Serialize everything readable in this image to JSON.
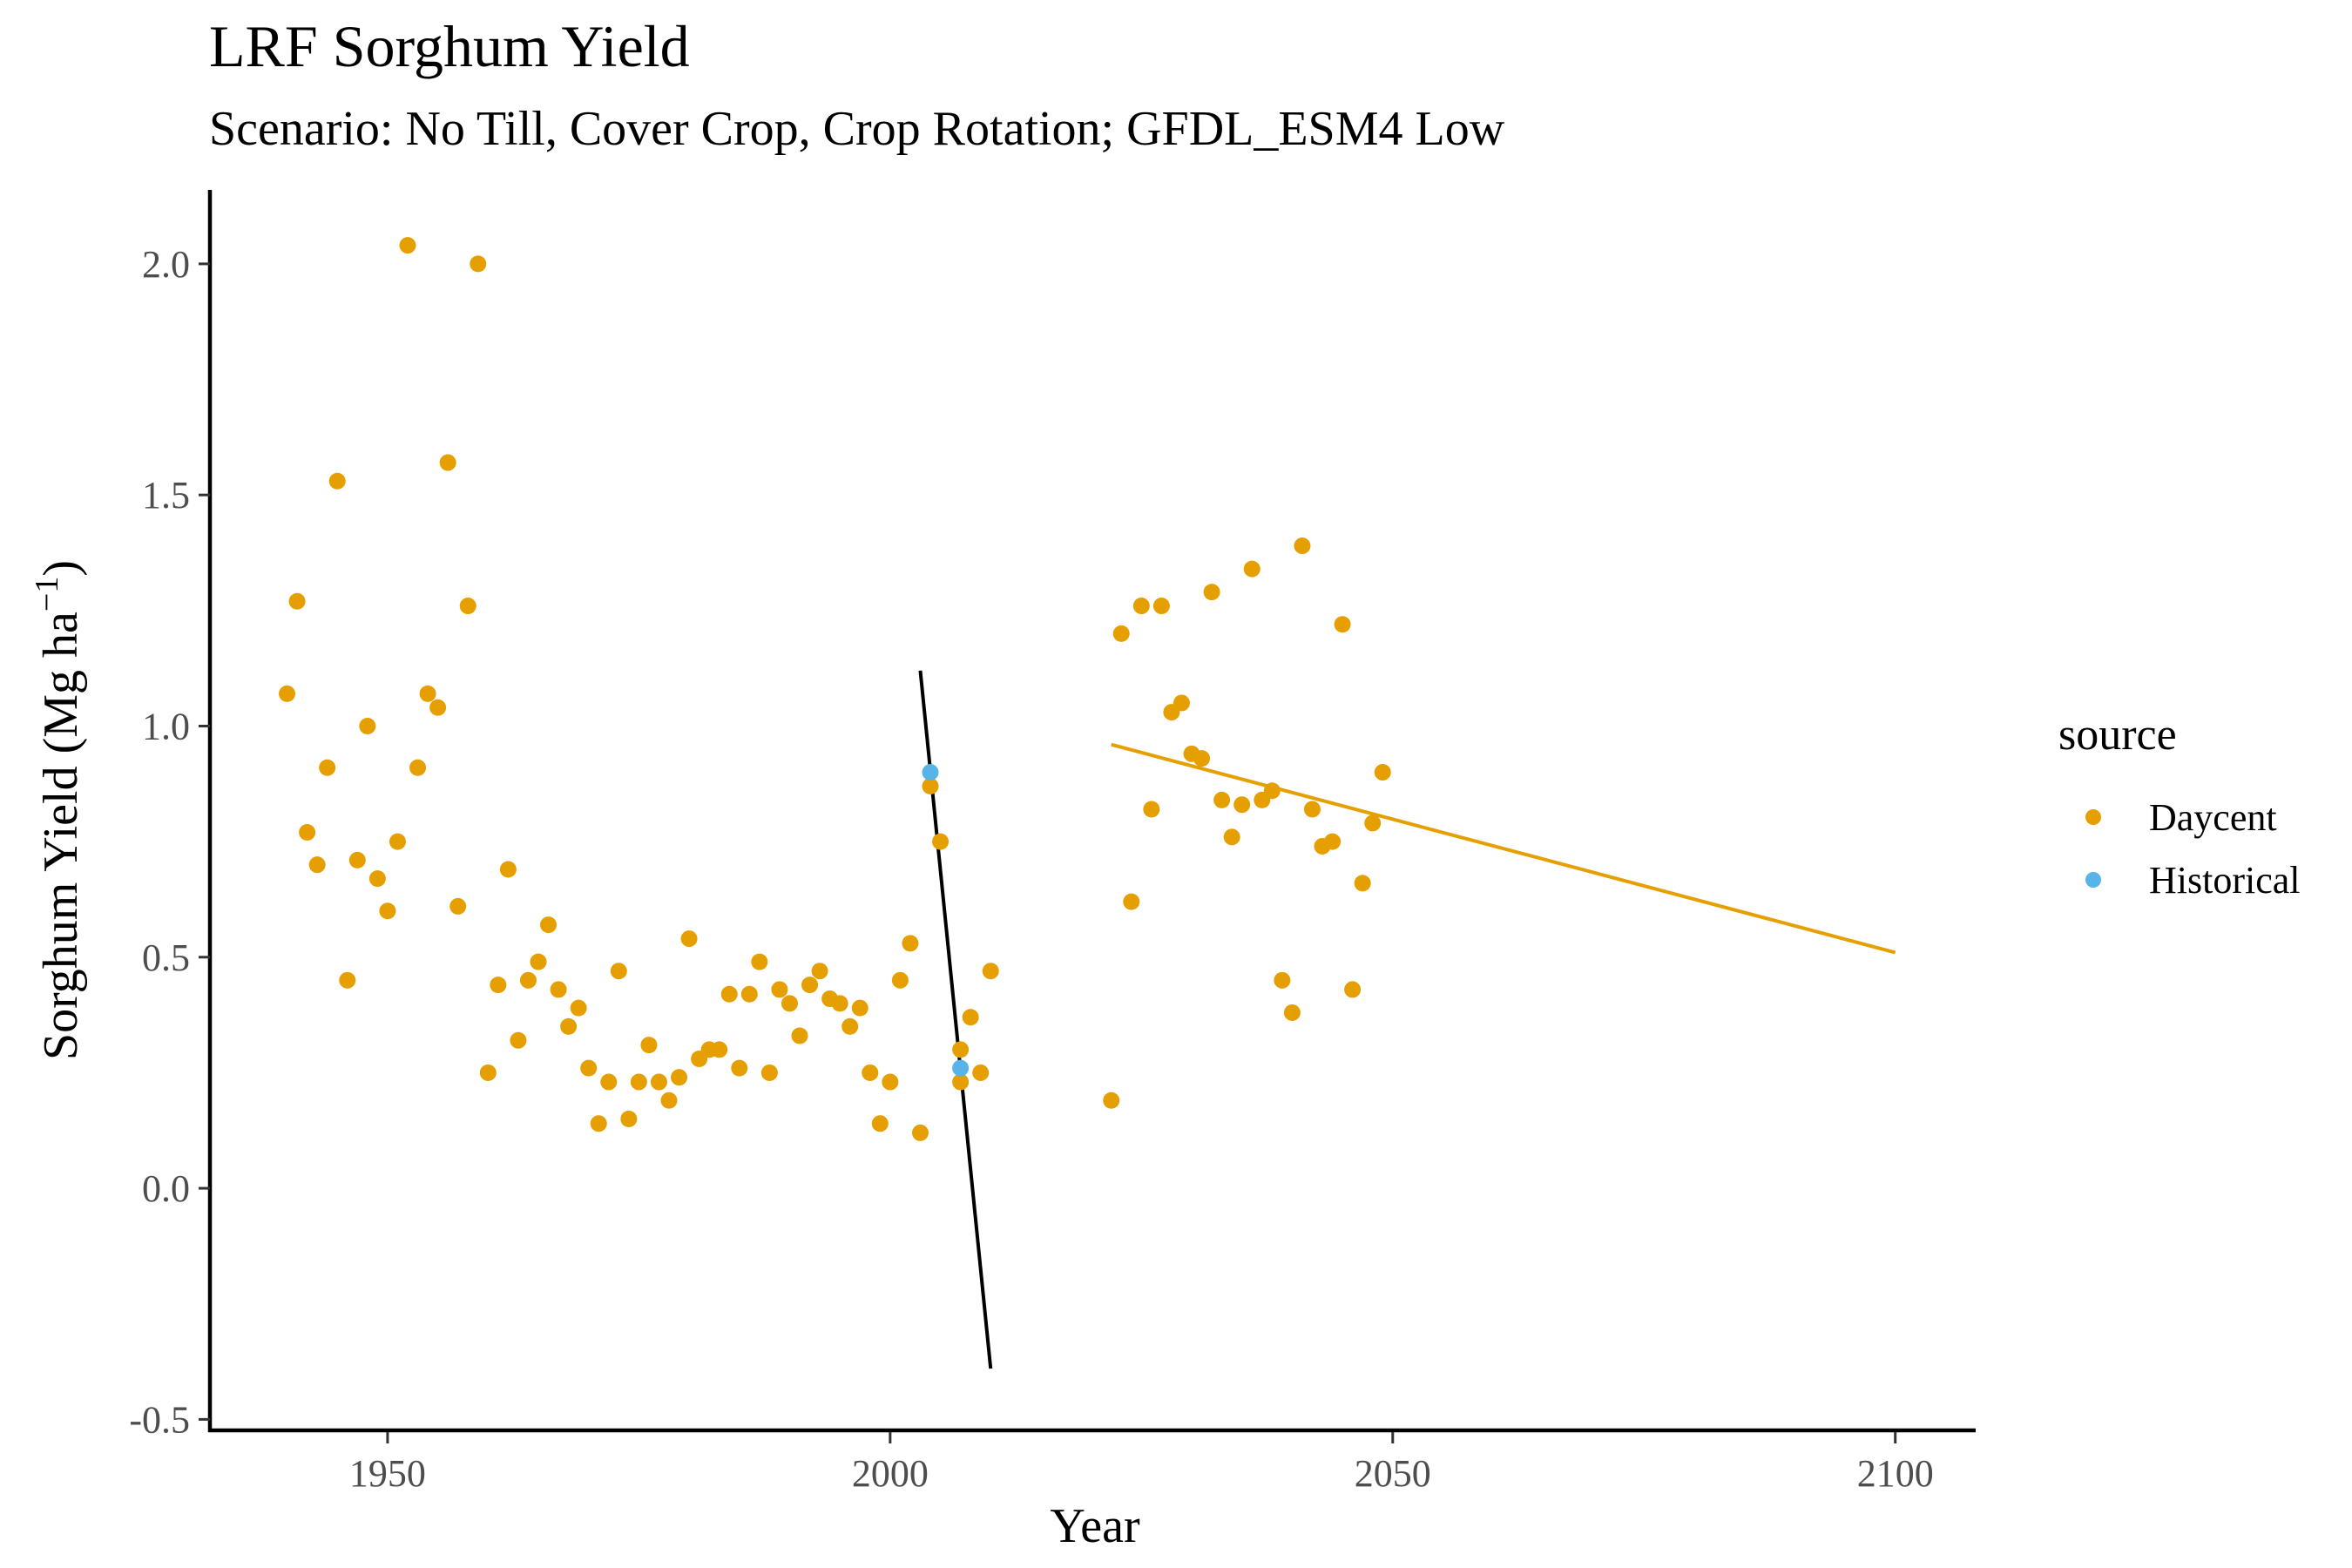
{
  "chart_data": {
    "type": "scatter",
    "title": "LRF Sorghum Yield",
    "subtitle": "Scenario: No Till, Cover Crop, Crop Rotation; GFDL_ESM4 Low",
    "xlabel": "Year",
    "ylabel": "Sorghum Yield (Mg ha",
    "ylabel_superscript": "−1",
    "ylabel_suffix": ")",
    "xlim": [
      1932.5,
      2108
    ],
    "ylim": [
      -0.52,
      2.16
    ],
    "xticks": [
      "1950",
      "2000",
      "2050",
      "2100"
    ],
    "yticks": [
      "-0.5",
      "0.0",
      "0.5",
      "1.0",
      "1.5",
      "2.0"
    ],
    "grid": false,
    "legend": {
      "title": "source",
      "position": "right",
      "entries": [
        "Daycent",
        "Historical"
      ]
    },
    "colors": {
      "Daycent": "#E69F00",
      "Historical": "#56B4E9",
      "historical_trend": "#000000"
    },
    "series": [
      {
        "name": "Daycent",
        "points": [
          [
            1940,
            1.07
          ],
          [
            1941,
            1.27
          ],
          [
            1942,
            0.77
          ],
          [
            1943,
            0.7
          ],
          [
            1944,
            0.91
          ],
          [
            1945,
            1.53
          ],
          [
            1946,
            0.45
          ],
          [
            1947,
            0.71
          ],
          [
            1948,
            1.0
          ],
          [
            1949,
            0.67
          ],
          [
            1950,
            0.6
          ],
          [
            1951,
            0.75
          ],
          [
            1952,
            2.04
          ],
          [
            1953,
            0.91
          ],
          [
            1954,
            1.07
          ],
          [
            1955,
            1.04
          ],
          [
            1956,
            1.57
          ],
          [
            1957,
            0.61
          ],
          [
            1958,
            1.26
          ],
          [
            1959,
            2.0
          ],
          [
            1960,
            0.25
          ],
          [
            1961,
            0.44
          ],
          [
            1962,
            0.69
          ],
          [
            1963,
            0.32
          ],
          [
            1964,
            0.45
          ],
          [
            1965,
            0.49
          ],
          [
            1966,
            0.57
          ],
          [
            1967,
            0.43
          ],
          [
            1968,
            0.35
          ],
          [
            1969,
            0.39
          ],
          [
            1970,
            0.26
          ],
          [
            1971,
            0.14
          ],
          [
            1972,
            0.23
          ],
          [
            1973,
            0.47
          ],
          [
            1974,
            0.15
          ],
          [
            1975,
            0.23
          ],
          [
            1976,
            0.31
          ],
          [
            1977,
            0.23
          ],
          [
            1978,
            0.19
          ],
          [
            1979,
            0.24
          ],
          [
            1980,
            0.54
          ],
          [
            1981,
            0.28
          ],
          [
            1982,
            0.3
          ],
          [
            1983,
            0.3
          ],
          [
            1984,
            0.42
          ],
          [
            1985,
            0.26
          ],
          [
            1986,
            0.42
          ],
          [
            1987,
            0.49
          ],
          [
            1988,
            0.25
          ],
          [
            1989,
            0.43
          ],
          [
            1990,
            0.4
          ],
          [
            1991,
            0.33
          ],
          [
            1992,
            0.44
          ],
          [
            1993,
            0.47
          ],
          [
            1994,
            0.41
          ],
          [
            1995,
            0.4
          ],
          [
            1996,
            0.35
          ],
          [
            1997,
            0.39
          ],
          [
            1998,
            0.25
          ],
          [
            1999,
            0.14
          ],
          [
            2000,
            0.23
          ],
          [
            2001,
            0.45
          ],
          [
            2002,
            0.53
          ],
          [
            2003,
            0.12
          ],
          [
            2004,
            0.87
          ],
          [
            2005,
            0.75
          ],
          [
            2007,
            0.3
          ],
          [
            2007,
            0.23
          ],
          [
            2008,
            0.37
          ],
          [
            2009,
            0.25
          ],
          [
            2010,
            0.47
          ],
          [
            2022,
            0.19
          ],
          [
            2023,
            1.2
          ],
          [
            2024,
            0.62
          ],
          [
            2025,
            1.26
          ],
          [
            2026,
            0.82
          ],
          [
            2027,
            1.26
          ],
          [
            2028,
            1.03
          ],
          [
            2029,
            1.05
          ],
          [
            2030,
            0.94
          ],
          [
            2031,
            0.93
          ],
          [
            2032,
            1.29
          ],
          [
            2033,
            0.84
          ],
          [
            2034,
            0.76
          ],
          [
            2035,
            0.83
          ],
          [
            2036,
            1.34
          ],
          [
            2037,
            0.84
          ],
          [
            2038,
            0.86
          ],
          [
            2039,
            0.45
          ],
          [
            2040,
            0.38
          ],
          [
            2041,
            1.39
          ],
          [
            2042,
            0.82
          ],
          [
            2043,
            0.74
          ],
          [
            2044,
            0.75
          ],
          [
            2045,
            1.22
          ],
          [
            2046,
            0.43
          ],
          [
            2047,
            0.66
          ],
          [
            2048,
            0.79
          ],
          [
            2049,
            0.9
          ]
        ],
        "trend": [
          [
            2022,
            0.96
          ],
          [
            2100,
            0.51
          ]
        ]
      },
      {
        "name": "Historical",
        "points": [
          [
            2004,
            0.9
          ],
          [
            2007,
            0.26
          ]
        ],
        "trend": [
          [
            2003,
            1.12
          ],
          [
            2010,
            -0.39
          ]
        ]
      }
    ]
  }
}
